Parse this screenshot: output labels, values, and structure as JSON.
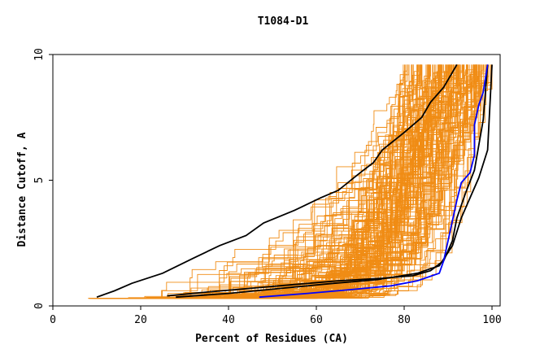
{
  "chart_data": {
    "type": "line",
    "title": "T1084-D1",
    "xlabel": "Percent of Residues (CA)",
    "ylabel": "Distance Cutoff, A",
    "xlim": [
      0,
      100
    ],
    "ylim": [
      0,
      10
    ],
    "x_ticks": [
      "0",
      "20",
      "40",
      "60",
      "80",
      "100"
    ],
    "y_ticks": [
      "0",
      "5",
      "10"
    ],
    "grid": false,
    "legend": "none",
    "colors": {
      "background_models": "#f08c14",
      "highlight_black": "#000000",
      "highlight_blue": "#0000ff",
      "axis": "#000000"
    },
    "highlight_series": [
      {
        "color": "#000000",
        "points": [
          [
            10,
            0.35
          ],
          [
            14,
            0.6
          ],
          [
            18,
            0.9
          ],
          [
            25,
            1.3
          ],
          [
            32,
            1.9
          ],
          [
            38,
            2.4
          ],
          [
            44,
            2.8
          ],
          [
            48,
            3.3
          ],
          [
            55,
            3.8
          ],
          [
            61,
            4.3
          ],
          [
            65,
            4.6
          ],
          [
            70,
            5.3
          ],
          [
            73,
            5.7
          ],
          [
            75,
            6.2
          ],
          [
            80,
            6.9
          ],
          [
            84,
            7.5
          ],
          [
            86,
            8.1
          ],
          [
            89,
            8.7
          ],
          [
            92,
            9.6
          ]
        ]
      },
      {
        "color": "#000000",
        "points": [
          [
            26,
            0.4
          ],
          [
            35,
            0.55
          ],
          [
            45,
            0.7
          ],
          [
            55,
            0.85
          ],
          [
            65,
            1.0
          ],
          [
            75,
            1.1
          ],
          [
            82,
            1.2
          ],
          [
            86,
            1.4
          ],
          [
            89,
            1.8
          ],
          [
            91,
            2.6
          ],
          [
            92,
            3.5
          ],
          [
            94,
            4.5
          ],
          [
            96,
            5.4
          ],
          [
            97,
            6.4
          ],
          [
            98,
            7.4
          ],
          [
            98.5,
            8.5
          ],
          [
            99,
            9.6
          ]
        ]
      },
      {
        "color": "#000000",
        "points": [
          [
            28,
            0.35
          ],
          [
            40,
            0.5
          ],
          [
            52,
            0.7
          ],
          [
            64,
            0.9
          ],
          [
            74,
            1.05
          ],
          [
            83,
            1.3
          ],
          [
            88,
            1.6
          ],
          [
            91,
            2.4
          ],
          [
            93,
            3.5
          ],
          [
            95,
            4.3
          ],
          [
            97,
            5.1
          ],
          [
            99,
            6.2
          ],
          [
            100,
            9.6
          ]
        ]
      },
      {
        "color": "#0000ff",
        "points": [
          [
            47,
            0.35
          ],
          [
            58,
            0.5
          ],
          [
            68,
            0.65
          ],
          [
            77,
            0.8
          ],
          [
            83,
            1.0
          ],
          [
            88,
            1.3
          ],
          [
            89,
            1.8
          ],
          [
            90,
            2.6
          ],
          [
            91,
            3.4
          ],
          [
            92,
            4.2
          ],
          [
            93,
            4.9
          ],
          [
            95,
            5.3
          ],
          [
            96,
            6.0
          ],
          [
            96,
            7.2
          ],
          [
            97,
            8.0
          ],
          [
            98,
            8.5
          ],
          [
            99,
            9.6
          ]
        ]
      }
    ]
  }
}
